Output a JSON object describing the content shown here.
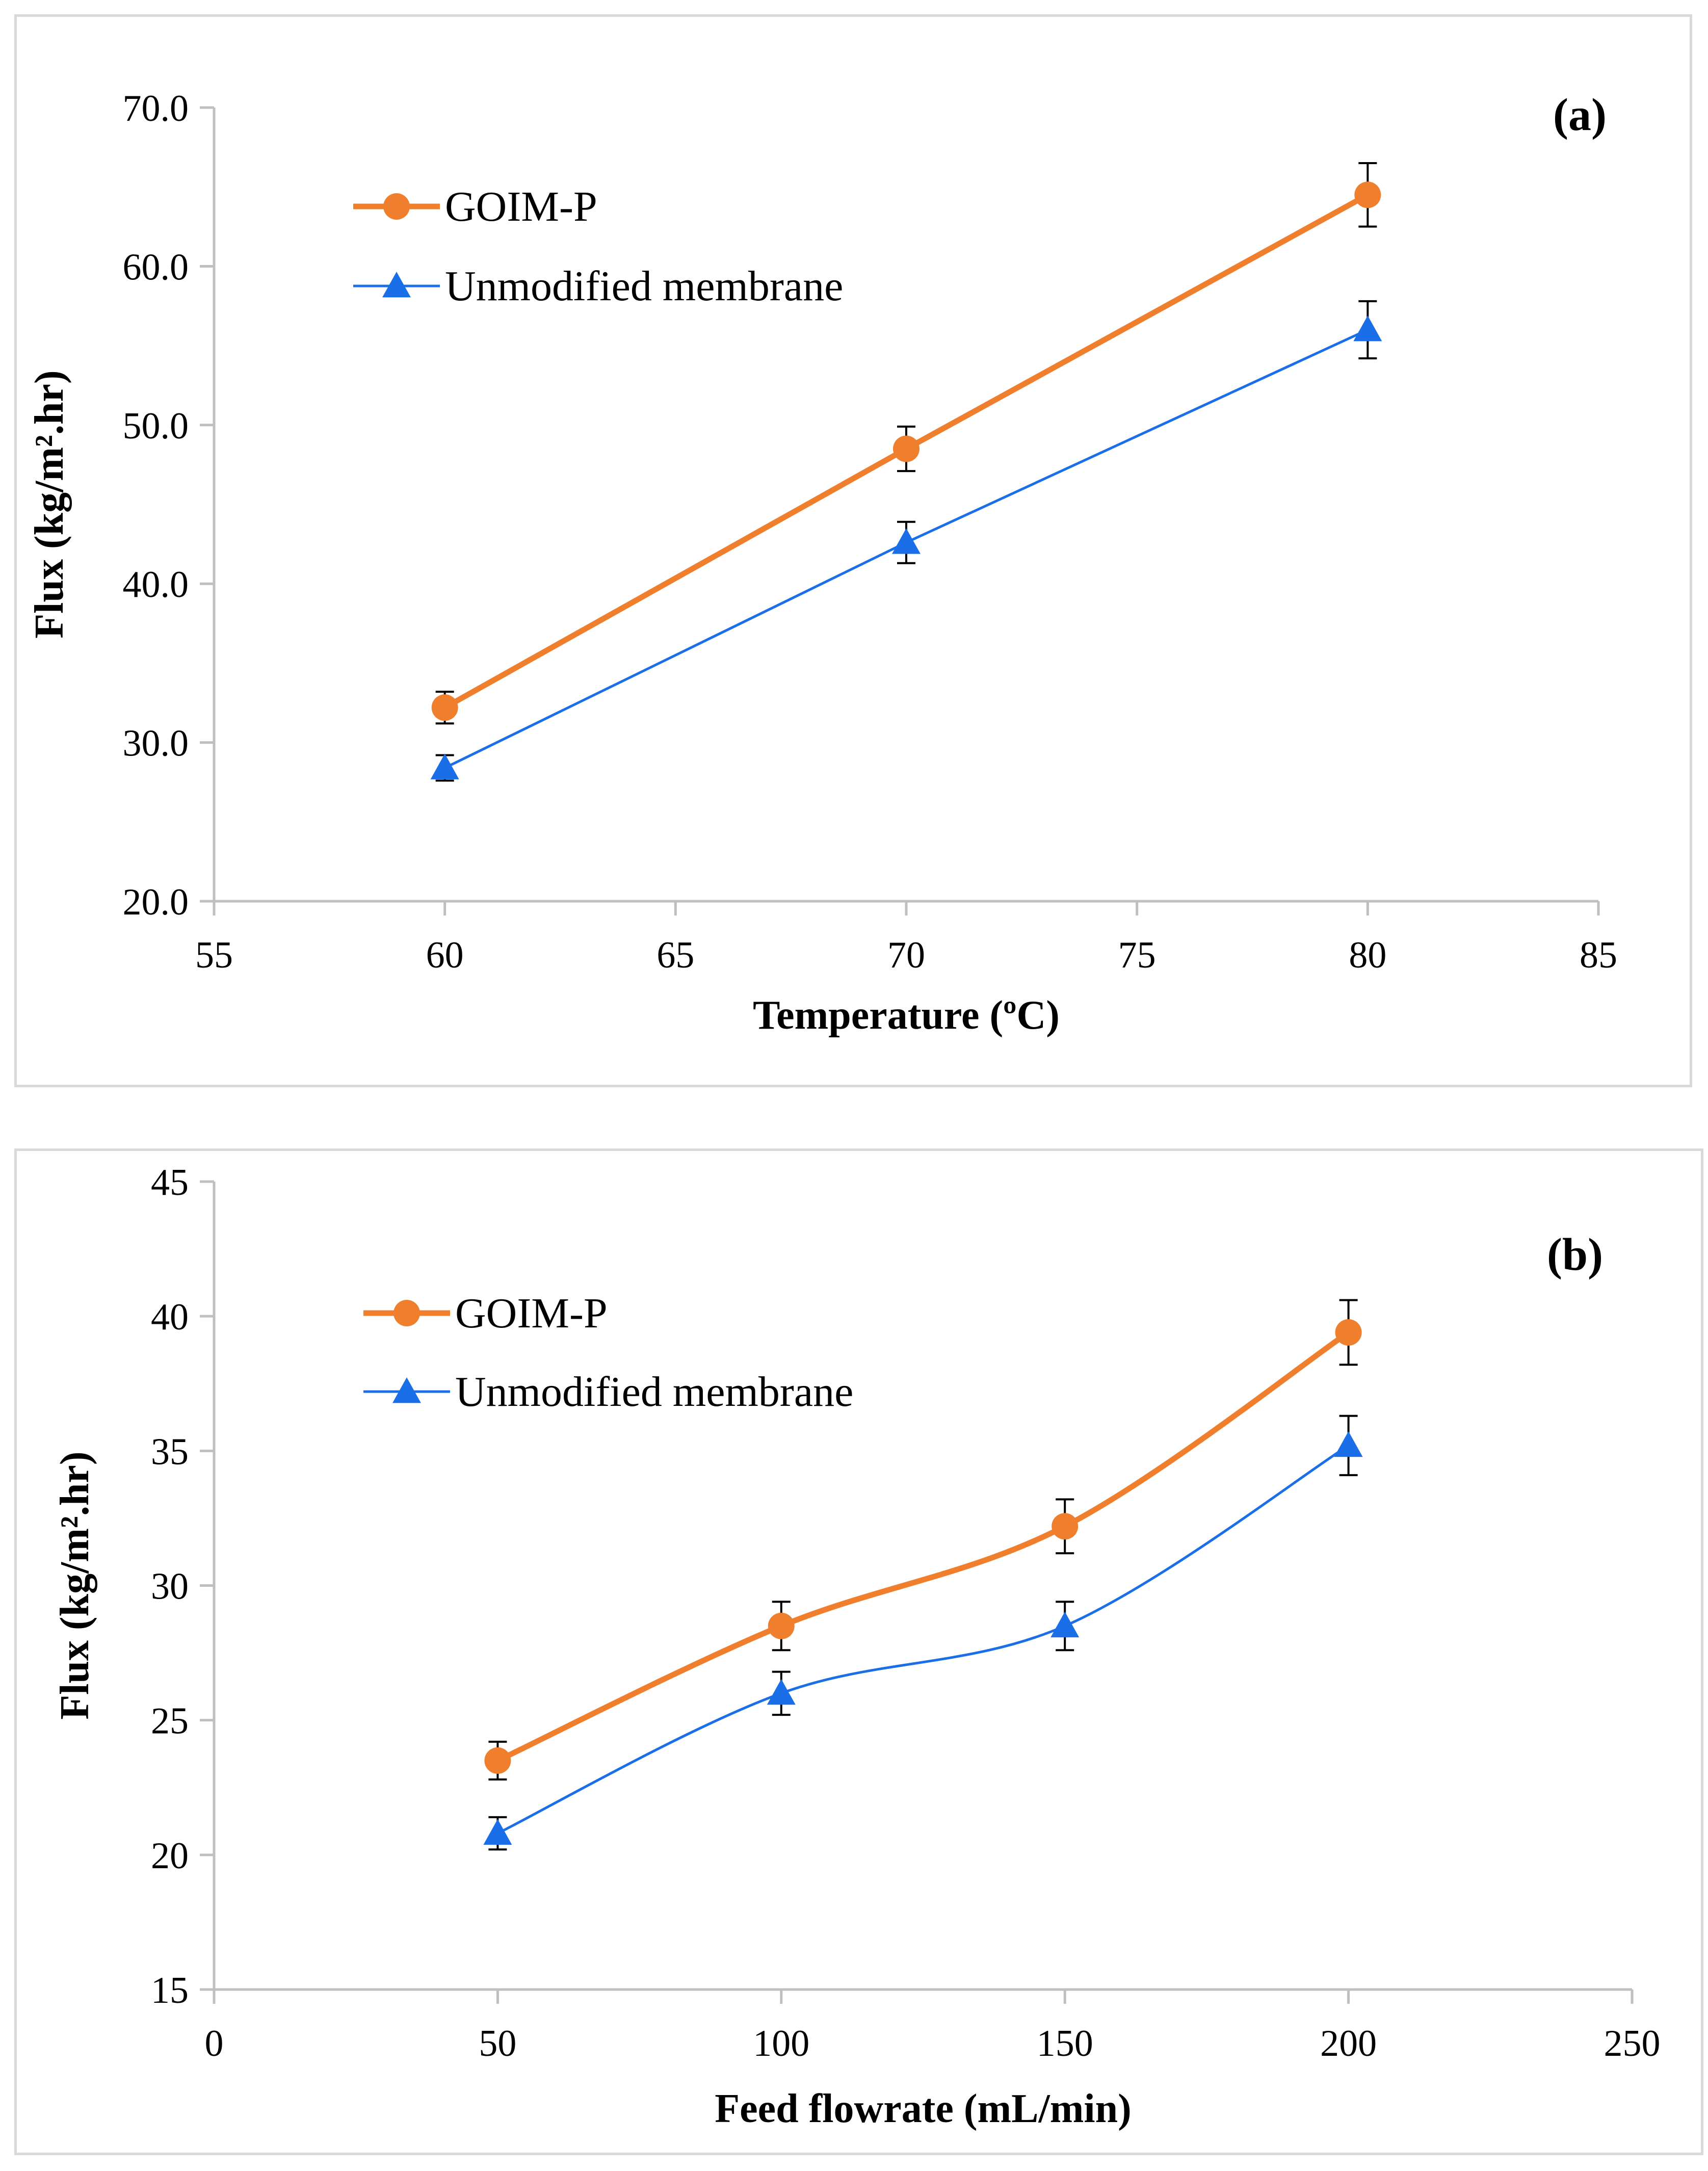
{
  "chart_data": [
    {
      "type": "line",
      "panel_label": "(a)",
      "xlabel": "Temperature (ºC)",
      "ylabel": "Flux (kg/m².hr)",
      "xlim": [
        55,
        85
      ],
      "ylim": [
        20,
        70
      ],
      "xticks": [
        55,
        60,
        65,
        70,
        75,
        80,
        85
      ],
      "yticks": [
        20,
        30,
        40,
        50,
        60,
        70
      ],
      "ytick_decimals": 1,
      "x": [
        60,
        70,
        80
      ],
      "smooth": false,
      "legend": "top-left",
      "grid": false,
      "series": [
        {
          "name": "GOIM-P",
          "color": "#f07f2d",
          "marker": "circle",
          "values": [
            32.2,
            48.5,
            64.5
          ],
          "errors": [
            1.0,
            1.4,
            2.0
          ]
        },
        {
          "name": "Unmodified membrane",
          "color": "#1a6fe8",
          "marker": "triangle",
          "values": [
            28.4,
            42.6,
            56.0
          ],
          "errors": [
            0.8,
            1.3,
            1.8
          ]
        }
      ]
    },
    {
      "type": "line",
      "panel_label": "(b)",
      "xlabel": "Feed flowrate (mL/min)",
      "ylabel": "Flux (kg/m².hr)",
      "xlim": [
        0,
        250
      ],
      "ylim": [
        15,
        45
      ],
      "xticks": [
        0,
        50,
        100,
        150,
        200,
        250
      ],
      "yticks": [
        15,
        20,
        25,
        30,
        35,
        40,
        45
      ],
      "ytick_decimals": 0,
      "x": [
        50,
        100,
        150,
        200
      ],
      "smooth": true,
      "legend": "top-left",
      "grid": false,
      "series": [
        {
          "name": "GOIM-P",
          "color": "#f07f2d",
          "marker": "circle",
          "values": [
            23.5,
            28.5,
            32.2,
            39.4
          ],
          "errors": [
            0.7,
            0.9,
            1.0,
            1.2
          ]
        },
        {
          "name": "Unmodified membrane",
          "color": "#1a6fe8",
          "marker": "triangle",
          "values": [
            20.8,
            26.0,
            28.5,
            35.2
          ],
          "errors": [
            0.6,
            0.8,
            0.9,
            1.1
          ]
        }
      ]
    }
  ]
}
